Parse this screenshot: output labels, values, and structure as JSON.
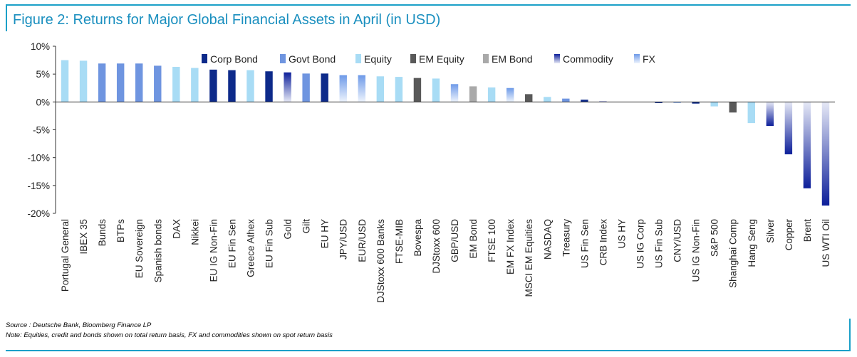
{
  "title": "Figure 2: Returns for Major Global Financial Assets in April (in USD)",
  "source": "Source : Deutsche Bank, Bloomberg Finance LP",
  "note": "Note: Equities, credit and bonds shown on total return basis, FX and commodities shown on spot return basis",
  "chart_data": {
    "type": "bar",
    "title": "Figure 2: Returns for Major Global Financial Assets in April (in USD)",
    "ylim": [
      -20,
      10
    ],
    "yticks": [
      10,
      5,
      0,
      -5,
      -10,
      -15,
      -20
    ],
    "ytick_labels": [
      "10%",
      "5%",
      "0%",
      "-5%",
      "-10%",
      "-15%",
      "-20%"
    ],
    "legend": [
      "Corp Bond",
      "Govt Bond",
      "Equity",
      "EM Equity",
      "EM Bond",
      "Commodity",
      "FX"
    ],
    "legend_position": "top",
    "colors": {
      "Corp Bond": "#0d2a8a",
      "Govt Bond": "#6f95e0",
      "Equity": "#a8dcf5",
      "EM Equity": "#595959",
      "EM Bond": "#a9a9a9",
      "Commodity": "#1f2fa8",
      "FX": "#7ea8ec"
    },
    "categories": [
      "Portugal General",
      "IBEX 35",
      "Bunds",
      "BTPs",
      "EU Sovereign",
      "Spanish bonds",
      "DAX",
      "Nikkei",
      "EU IG Non-Fin",
      "EU Fin Sen",
      "Greece Athex",
      "EU Fin Sub",
      "Gold",
      "Gilt",
      "EU HY",
      "JPY/USD",
      "EUR/USD",
      "DJStoxx 600 Banks",
      "FTSE-MIB",
      "Bovespa",
      "DJStoxx 600",
      "GBP/USD",
      "EM Bond",
      "FTSE 100",
      "EM FX Index",
      "MSCI EM Equities",
      "NASDAQ",
      "Treasury",
      "US Fin Sen",
      "CRB Index",
      "US HY",
      "US IG Corp",
      "US Fin Sub",
      "CNY/USD",
      "US IG Non-Fin",
      "S&P 500",
      "Shanghai Comp",
      "Hang Seng",
      "Silver",
      "Copper",
      "Brent",
      "US WTI Oil"
    ],
    "values": [
      7.5,
      7.4,
      6.9,
      6.9,
      6.9,
      6.5,
      6.3,
      6.1,
      5.8,
      5.7,
      5.7,
      5.5,
      5.3,
      5.1,
      5.1,
      4.8,
      4.8,
      4.6,
      4.5,
      4.3,
      4.2,
      3.2,
      2.8,
      2.6,
      2.5,
      1.4,
      0.9,
      0.6,
      0.4,
      0.1,
      0.0,
      0.0,
      -0.2,
      -0.2,
      -0.3,
      -0.8,
      -1.9,
      -3.8,
      -4.3,
      -9.4,
      -15.5,
      -18.6
    ],
    "groups": [
      "Equity",
      "Equity",
      "Govt Bond",
      "Govt Bond",
      "Govt Bond",
      "Govt Bond",
      "Equity",
      "Equity",
      "Corp Bond",
      "Corp Bond",
      "Equity",
      "Corp Bond",
      "Commodity",
      "Govt Bond",
      "Corp Bond",
      "FX",
      "FX",
      "Equity",
      "Equity",
      "EM Equity",
      "Equity",
      "FX",
      "EM Bond",
      "Equity",
      "FX",
      "EM Equity",
      "Equity",
      "Govt Bond",
      "Corp Bond",
      "Commodity",
      "Corp Bond",
      "Corp Bond",
      "Corp Bond",
      "FX",
      "Corp Bond",
      "Equity",
      "EM Equity",
      "Equity",
      "Commodity",
      "Commodity",
      "Commodity",
      "Commodity"
    ]
  }
}
